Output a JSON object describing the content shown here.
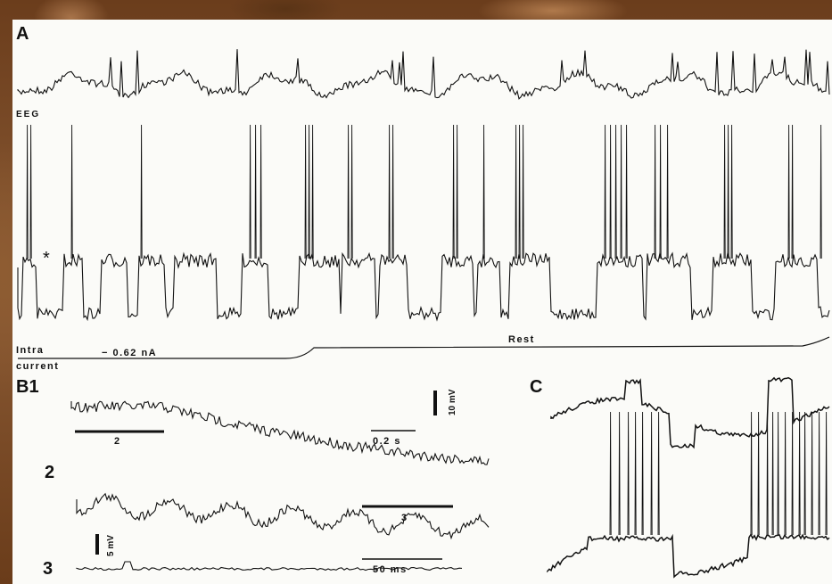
{
  "figure": {
    "panel_a": "A",
    "panel_b1": "B1",
    "panel_c": "C",
    "trace_eeg": "EEG",
    "trace_intra": "Intra",
    "trace_current": "current",
    "current_value": "− 0.62 nA",
    "rest_label": "Rest",
    "asterisk": "*",
    "b_sub_2": "2",
    "b_sub_3": "3",
    "bar_label_2": "2",
    "bar_label_3": "3",
    "scale_10mv": "10 mV",
    "scale_02s": "0.2 s",
    "scale_5mv": "5 mV",
    "scale_50ms": "50 ms"
  },
  "colors": {
    "ink": "#111111",
    "paper": "#fbfbf8",
    "background": "#7a4a24"
  }
}
